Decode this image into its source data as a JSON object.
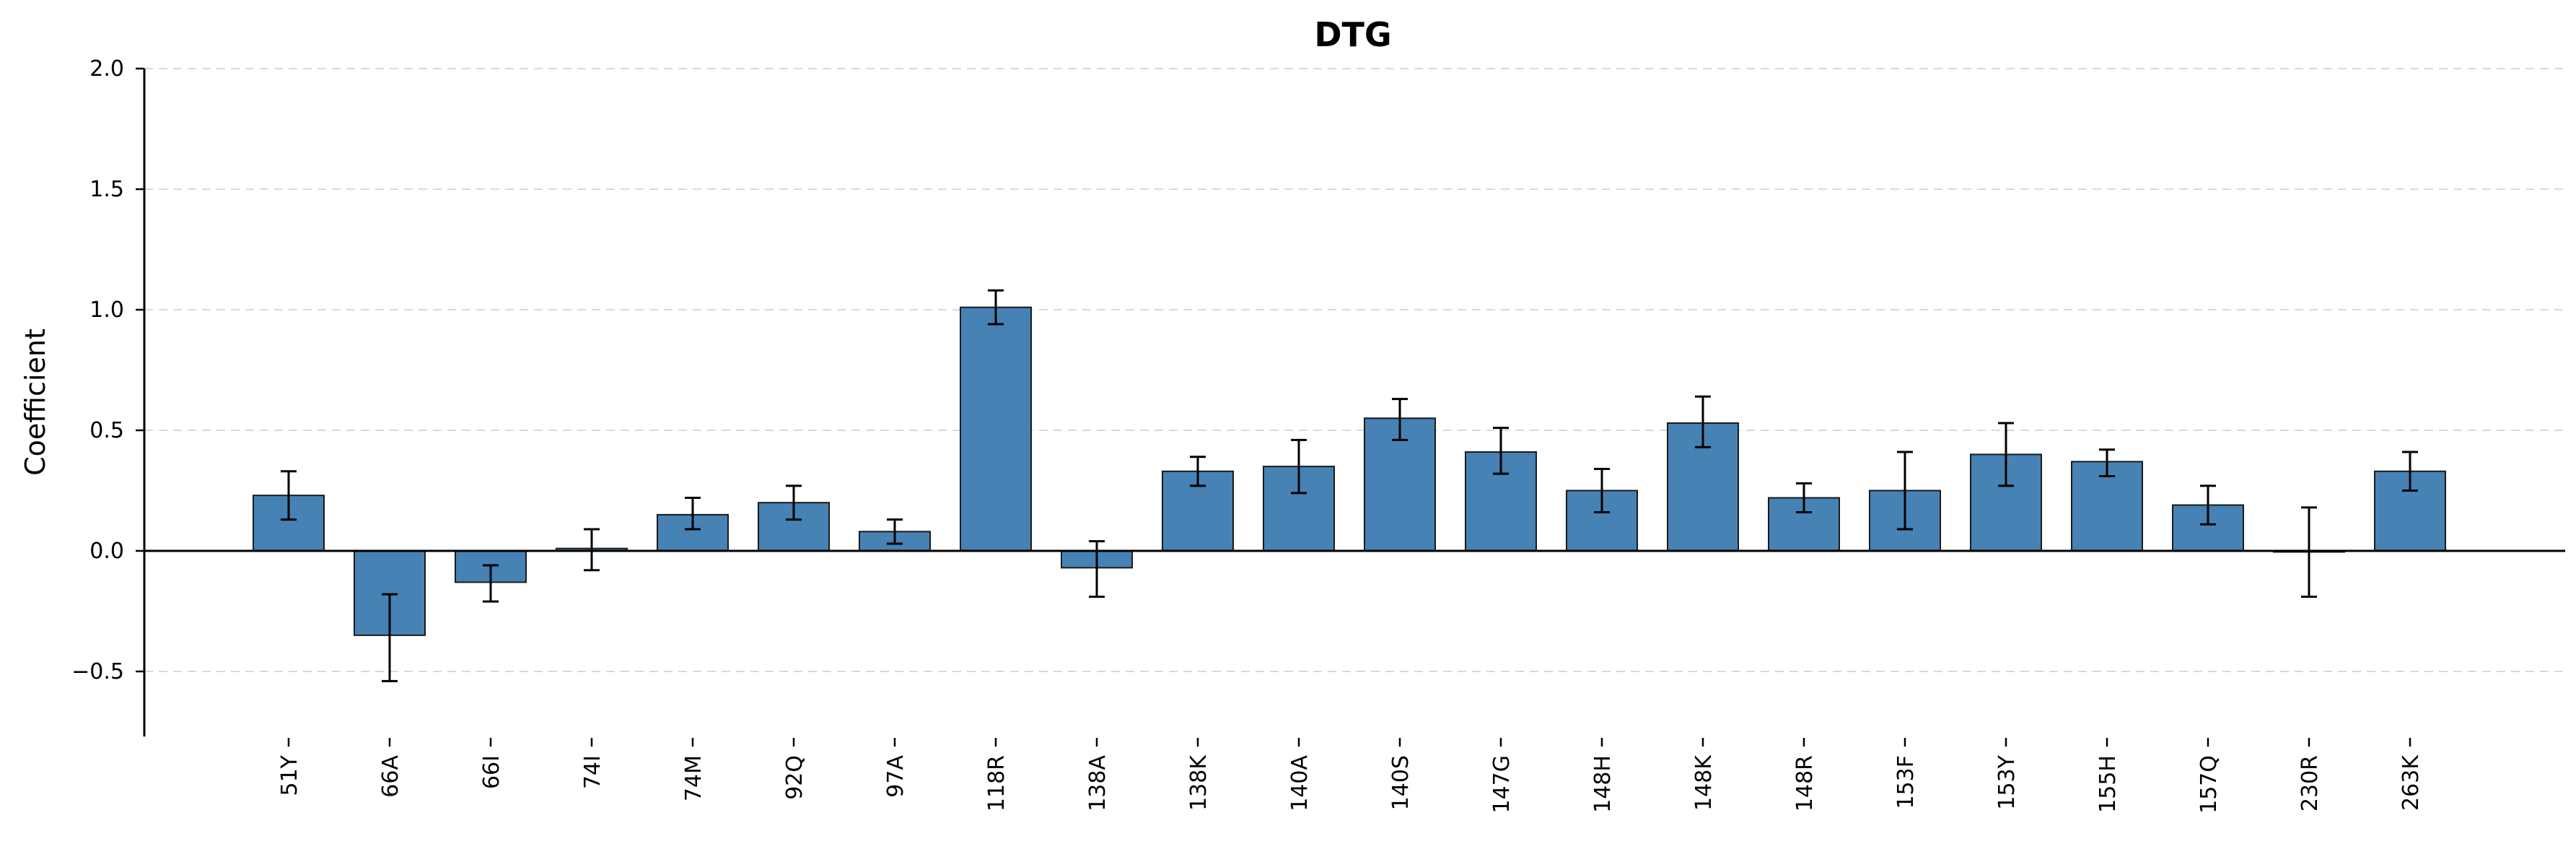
{
  "chart_data": {
    "type": "bar",
    "title": "DTG",
    "xlabel": "",
    "ylabel": "Coefficient",
    "ylim": [
      -0.77,
      2.0
    ],
    "yticks": [
      -0.5,
      0.0,
      0.5,
      1.0,
      1.5,
      2.0
    ],
    "ytick_labels": [
      "−0.5",
      "0.0",
      "0.5",
      "1.0",
      "1.5",
      "2.0"
    ],
    "grid": "horizontal-dashed",
    "bar_color": "#4682b4",
    "categories": [
      "51Y",
      "66A",
      "66I",
      "74I",
      "74M",
      "92Q",
      "97A",
      "118R",
      "138A",
      "138K",
      "140A",
      "140S",
      "147G",
      "148H",
      "148K",
      "148R",
      "153F",
      "153Y",
      "155H",
      "157Q",
      "230R",
      "263K"
    ],
    "values": [
      0.23,
      -0.35,
      -0.13,
      0.01,
      0.15,
      0.2,
      0.08,
      1.01,
      -0.07,
      0.33,
      0.35,
      0.55,
      0.41,
      0.25,
      0.53,
      0.22,
      0.25,
      0.4,
      0.37,
      0.19,
      0.0,
      0.33
    ],
    "err_low": [
      0.13,
      -0.54,
      -0.21,
      -0.08,
      0.09,
      0.13,
      0.03,
      0.94,
      -0.19,
      0.27,
      0.24,
      0.46,
      0.32,
      0.16,
      0.43,
      0.16,
      0.09,
      0.27,
      0.31,
      0.11,
      -0.19,
      0.25
    ],
    "err_high": [
      0.33,
      -0.18,
      -0.06,
      0.09,
      0.22,
      0.27,
      0.13,
      1.08,
      0.04,
      0.39,
      0.46,
      0.63,
      0.51,
      0.34,
      0.64,
      0.28,
      0.41,
      0.53,
      0.42,
      0.27,
      0.18,
      0.41
    ]
  }
}
